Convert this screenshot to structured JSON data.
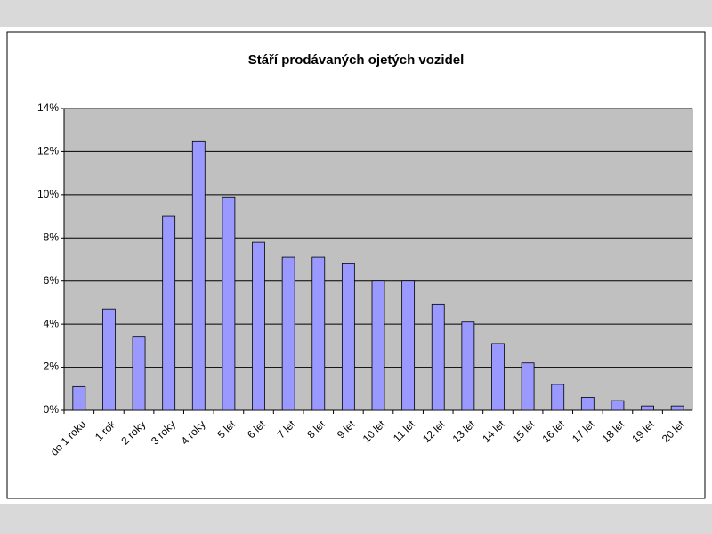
{
  "chart_data": {
    "type": "bar",
    "title": "Stáří prodávaných ojetých vozidel",
    "categories": [
      "do 1 roku",
      "1 rok",
      "2 roky",
      "3 roky",
      "4 roky",
      "5 let",
      "6 let",
      "7 let",
      "8 let",
      "9 let",
      "10 let",
      "11 let",
      "12 let",
      "13 let",
      "14 let",
      "15 let",
      "16 let",
      "17 let",
      "18 let",
      "19 let",
      "20 let"
    ],
    "values": [
      1.1,
      4.7,
      3.4,
      9.0,
      12.5,
      9.9,
      7.8,
      7.1,
      7.1,
      6.8,
      6.0,
      6.0,
      4.9,
      4.1,
      3.1,
      2.2,
      1.2,
      0.6,
      0.45,
      0.2,
      0.2
    ],
    "color": "#9999ff",
    "ylim": [
      0,
      14
    ],
    "yticks": [
      {
        "value": 0,
        "label": "0%"
      },
      {
        "value": 2,
        "label": "2%"
      },
      {
        "value": 4,
        "label": "4%"
      },
      {
        "value": 6,
        "label": "6%"
      },
      {
        "value": 8,
        "label": "8%"
      },
      {
        "value": 10,
        "label": "10%"
      },
      {
        "value": 12,
        "label": "12%"
      },
      {
        "value": 14,
        "label": "14%"
      }
    ],
    "grid": true
  }
}
